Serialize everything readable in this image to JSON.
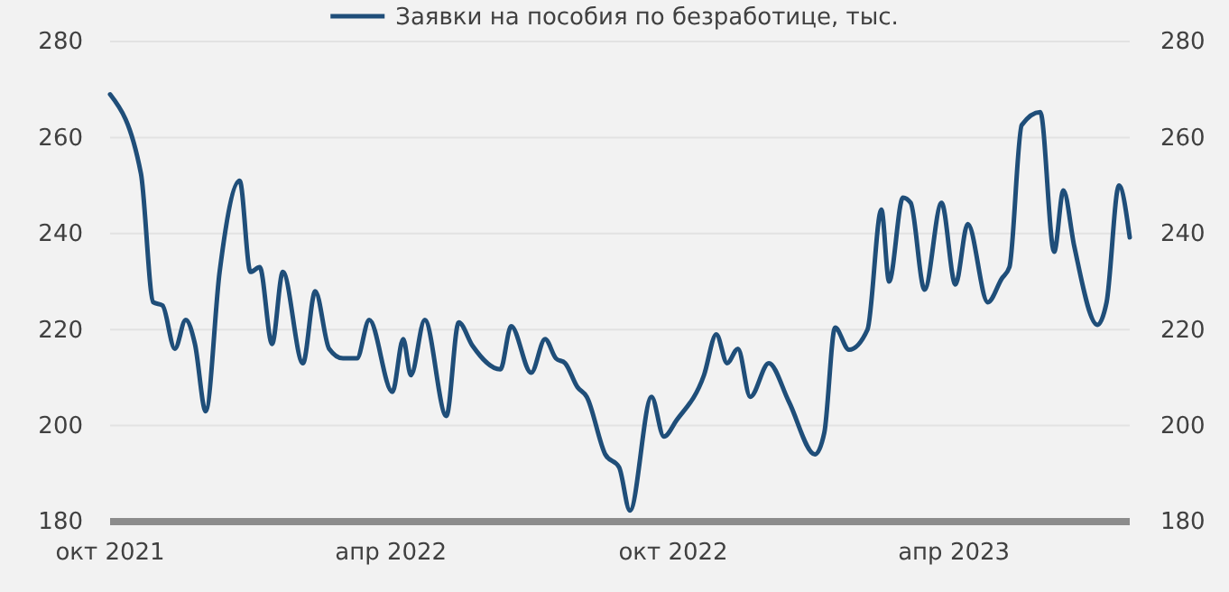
{
  "chart_data": {
    "type": "line",
    "x": [
      "2021-10-01",
      "2021-10-21",
      "2021-10-29",
      "2021-11-04",
      "2021-11-12",
      "2021-11-19",
      "2021-11-25",
      "2021-12-02",
      "2021-12-11",
      "2021-12-24",
      "2021-12-31",
      "2022-01-06",
      "2022-01-14",
      "2022-01-21",
      "2022-02-03",
      "2022-02-11",
      "2022-02-20",
      "2022-03-01",
      "2022-03-10",
      "2022-03-18",
      "2022-04-02",
      "2022-04-09",
      "2022-04-14",
      "2022-04-23",
      "2022-05-07",
      "2022-05-15",
      "2022-05-24",
      "2022-06-11",
      "2022-06-18",
      "2022-07-01",
      "2022-07-10",
      "2022-07-17",
      "2022-07-23",
      "2022-07-31",
      "2022-08-06",
      "2022-08-18",
      "2022-08-27",
      "2022-09-03",
      "2022-09-17",
      "2022-09-25",
      "2022-10-03",
      "2022-10-21",
      "2022-10-29",
      "2022-11-05",
      "2022-11-12",
      "2022-11-20",
      "2022-12-02",
      "2022-12-15",
      "2023-01-01",
      "2023-01-07",
      "2023-01-14",
      "2023-01-23",
      "2023-02-04",
      "2023-02-13",
      "2023-02-18",
      "2023-02-27",
      "2023-03-04",
      "2023-03-13",
      "2023-03-24",
      "2023-04-02",
      "2023-04-10",
      "2023-04-23",
      "2023-05-02",
      "2023-05-07",
      "2023-05-15",
      "2023-05-27",
      "2023-06-05",
      "2023-06-11",
      "2023-06-18",
      "2023-07-03",
      "2023-07-09",
      "2023-07-17",
      "2023-07-24"
    ],
    "series": [
      {
        "name": "Заявки на пособия по безработице, тыс.",
        "color": "#1f4e79",
        "values": [
          269,
          252.5,
          225.7,
          225,
          216,
          222,
          217,
          203,
          232,
          251,
          232,
          233,
          217,
          232,
          213,
          228,
          216,
          214,
          214,
          222,
          207,
          218,
          210.5,
          222,
          202,
          221.5,
          216.6,
          211.7,
          220.7,
          211,
          218,
          214,
          213,
          208,
          206,
          194,
          191.3,
          182.3,
          206,
          197.7,
          201,
          210.5,
          219,
          213,
          216,
          206,
          213,
          205,
          194,
          198.5,
          220.4,
          215.8,
          220,
          245,
          230,
          247.5,
          246.4,
          228.3,
          246.4,
          229.4,
          242,
          225.7,
          230.6,
          233,
          262.6,
          265.3,
          236.2,
          249,
          237.4,
          221,
          225.7,
          250,
          239.2
        ]
      }
    ],
    "xlim": [
      "2021-10-01",
      "2023-07-24"
    ],
    "xticks": [
      {
        "value": "2021-10-01",
        "label": "окт 2021"
      },
      {
        "value": "2022-04-01",
        "label": "апр 2022"
      },
      {
        "value": "2022-10-01",
        "label": "окт 2022"
      },
      {
        "value": "2023-04-01",
        "label": "апр 2023"
      }
    ],
    "ylim": [
      180,
      280
    ],
    "yticks": [
      180,
      200,
      220,
      240,
      260,
      280
    ],
    "y2lim": [
      180,
      280
    ],
    "y2ticks": [
      180,
      200,
      220,
      240,
      260,
      280
    ],
    "grid": "y",
    "legend": "top",
    "marker": "none",
    "line_style": "solid"
  }
}
